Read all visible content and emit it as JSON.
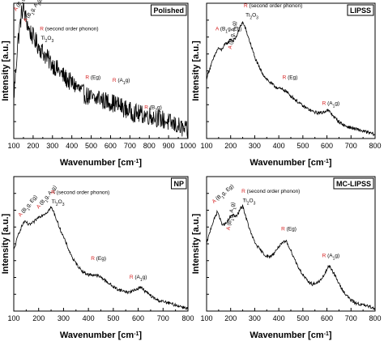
{
  "chart_data": [
    {
      "type": "line",
      "title": "Polished",
      "xlabel": "Wavenumber [cm-1]",
      "ylabel": "Intensity [a.u.]",
      "xlim": [
        100,
        1000
      ],
      "xticks": [
        100,
        200,
        300,
        400,
        500,
        600,
        700,
        800,
        900,
        1000
      ],
      "noise": 0.07,
      "series": [
        {
          "x": [
            100,
            120,
            140,
            150,
            160,
            180,
            200,
            220,
            240,
            260,
            280,
            300,
            320,
            350,
            380,
            420,
            460,
            500,
            520,
            540,
            560,
            600,
            650,
            700,
            750,
            800,
            850,
            900,
            950,
            1000
          ],
          "y": [
            0.3,
            0.7,
            0.92,
            0.97,
            0.9,
            0.8,
            0.75,
            0.7,
            0.66,
            0.62,
            0.58,
            0.55,
            0.52,
            0.47,
            0.43,
            0.39,
            0.33,
            0.3,
            0.28,
            0.31,
            0.28,
            0.27,
            0.24,
            0.2,
            0.18,
            0.17,
            0.15,
            0.12,
            0.09,
            0.05
          ]
        }
      ],
      "annotations": [
        {
          "prefix": "A",
          "text": "(B1g, Eg)",
          "x": 112,
          "y": 0.94,
          "rotate": -55
        },
        {
          "prefix": "A",
          "text": "(B1g, A1g)",
          "x": 162,
          "y": 0.86,
          "rotate": -55
        },
        {
          "prefix": "R",
          "text": "(second order phonon)",
          "x": 235,
          "y": 0.8
        },
        {
          "prefix": "",
          "text": "Ti2O3",
          "x": 240,
          "y": 0.73
        },
        {
          "prefix": "R",
          "text": "(Eg)",
          "x": 470,
          "y": 0.44
        },
        {
          "prefix": "R",
          "text": "(A1g)",
          "x": 610,
          "y": 0.42
        },
        {
          "prefix": "R",
          "text": "(B2g)",
          "x": 775,
          "y": 0.22
        }
      ]
    },
    {
      "type": "line",
      "title": "LIPSS",
      "xlabel": "Wavenumber [cm-1]",
      "ylabel": "Intensity [a.u.]",
      "xlim": [
        100,
        800
      ],
      "xticks": [
        100,
        200,
        300,
        400,
        500,
        600,
        700,
        800
      ],
      "noise": 0.012,
      "series": [
        {
          "x": [
            100,
            120,
            140,
            150,
            160,
            170,
            180,
            190,
            200,
            210,
            220,
            230,
            240,
            250,
            260,
            275,
            290,
            300,
            320,
            340,
            360,
            380,
            400,
            420,
            430,
            440,
            460,
            480,
            500,
            520,
            540,
            560,
            580,
            600,
            610,
            620,
            640,
            660,
            680,
            700,
            720,
            740,
            760,
            780,
            800
          ],
          "y": [
            0.45,
            0.55,
            0.64,
            0.67,
            0.65,
            0.68,
            0.7,
            0.71,
            0.74,
            0.72,
            0.74,
            0.78,
            0.83,
            0.86,
            0.82,
            0.74,
            0.66,
            0.6,
            0.52,
            0.46,
            0.42,
            0.39,
            0.37,
            0.36,
            0.35,
            0.33,
            0.3,
            0.27,
            0.24,
            0.22,
            0.2,
            0.19,
            0.19,
            0.21,
            0.2,
            0.18,
            0.14,
            0.11,
            0.09,
            0.08,
            0.07,
            0.06,
            0.05,
            0.04,
            0.03
          ]
        }
      ],
      "annotations": [
        {
          "prefix": "A",
          "text": "(B1g, Eg)",
          "x": 137,
          "y": 0.8
        },
        {
          "prefix": "A",
          "text": "(B1g, A1g)",
          "x": 203,
          "y": 0.66,
          "rotate": -80
        },
        {
          "prefix": "R",
          "text": "(second order phonon)",
          "x": 255,
          "y": 0.97
        },
        {
          "prefix": "",
          "text": "Ti2O3",
          "x": 262,
          "y": 0.9
        },
        {
          "prefix": "R",
          "text": "(Eg)",
          "x": 415,
          "y": 0.44
        },
        {
          "prefix": "R",
          "text": "(A1g)",
          "x": 580,
          "y": 0.25
        }
      ]
    },
    {
      "type": "line",
      "title": "NP",
      "xlabel": "Wavenumber [cm-1]",
      "ylabel": "Intensity [a.u.]",
      "xlim": [
        100,
        800
      ],
      "xticks": [
        100,
        200,
        300,
        400,
        500,
        600,
        700,
        800
      ],
      "noise": 0.012,
      "series": [
        {
          "x": [
            100,
            120,
            140,
            150,
            160,
            180,
            200,
            220,
            230,
            240,
            250,
            260,
            280,
            300,
            320,
            340,
            360,
            380,
            400,
            420,
            440,
            460,
            480,
            500,
            520,
            540,
            560,
            580,
            600,
            610,
            620,
            640,
            660,
            680,
            700,
            720,
            740,
            760,
            780,
            800
          ],
          "y": [
            0.45,
            0.58,
            0.66,
            0.66,
            0.64,
            0.66,
            0.7,
            0.72,
            0.73,
            0.75,
            0.77,
            0.74,
            0.64,
            0.55,
            0.46,
            0.38,
            0.33,
            0.29,
            0.27,
            0.27,
            0.26,
            0.24,
            0.21,
            0.18,
            0.16,
            0.15,
            0.14,
            0.15,
            0.17,
            0.18,
            0.16,
            0.13,
            0.1,
            0.08,
            0.07,
            0.06,
            0.05,
            0.04,
            0.03,
            0.02
          ]
        }
      ],
      "annotations": [
        {
          "prefix": "A",
          "text": "(B1g, Eg)",
          "x": 127,
          "y": 0.7,
          "rotate": -50
        },
        {
          "prefix": "A",
          "text": "(B1g, A1g)",
          "x": 200,
          "y": 0.76,
          "rotate": -50
        },
        {
          "prefix": "R",
          "text": "(second order phonon)",
          "x": 250,
          "y": 0.87
        },
        {
          "prefix": "",
          "text": "Ti2O3",
          "x": 252,
          "y": 0.8
        },
        {
          "prefix": "R",
          "text": "(Eg)",
          "x": 410,
          "y": 0.38
        },
        {
          "prefix": "R",
          "text": "(A1g)",
          "x": 565,
          "y": 0.24
        }
      ]
    },
    {
      "type": "line",
      "title": "MC-LIPSS",
      "xlabel": "Wavenumber [cm-1]",
      "ylabel": "Intensity [a.u.]",
      "xlim": [
        100,
        800
      ],
      "xticks": [
        100,
        200,
        300,
        400,
        500,
        600,
        700,
        800
      ],
      "noise": 0.012,
      "series": [
        {
          "x": [
            100,
            120,
            140,
            145,
            150,
            160,
            170,
            180,
            200,
            210,
            220,
            230,
            240,
            250,
            260,
            280,
            300,
            320,
            340,
            360,
            380,
            400,
            420,
            430,
            440,
            460,
            480,
            500,
            520,
            540,
            560,
            580,
            600,
            610,
            620,
            640,
            660,
            680,
            700,
            720,
            740,
            760,
            780,
            800
          ],
          "y": [
            0.5,
            0.63,
            0.72,
            0.74,
            0.72,
            0.66,
            0.64,
            0.65,
            0.7,
            0.72,
            0.7,
            0.72,
            0.76,
            0.78,
            0.72,
            0.6,
            0.51,
            0.46,
            0.42,
            0.4,
            0.43,
            0.48,
            0.51,
            0.52,
            0.49,
            0.41,
            0.33,
            0.27,
            0.22,
            0.2,
            0.21,
            0.24,
            0.31,
            0.34,
            0.31,
            0.24,
            0.17,
            0.12,
            0.08,
            0.06,
            0.05,
            0.04,
            0.03,
            0.02
          ]
        }
      ],
      "annotations": [
        {
          "prefix": "A",
          "text": "(B1g, Eg)",
          "x": 130,
          "y": 0.8,
          "rotate": -40
        },
        {
          "prefix": "A",
          "text": "(B1g, A1g)",
          "x": 196,
          "y": 0.6,
          "rotate": -80
        },
        {
          "prefix": "R",
          "text": "(second order phonon)",
          "x": 245,
          "y": 0.88
        },
        {
          "prefix": "",
          "text": "Ti2O3",
          "x": 250,
          "y": 0.81
        },
        {
          "prefix": "R",
          "text": "(Eg)",
          "x": 410,
          "y": 0.6
        },
        {
          "prefix": "R",
          "text": "(A1g)",
          "x": 580,
          "y": 0.4
        }
      ]
    }
  ]
}
